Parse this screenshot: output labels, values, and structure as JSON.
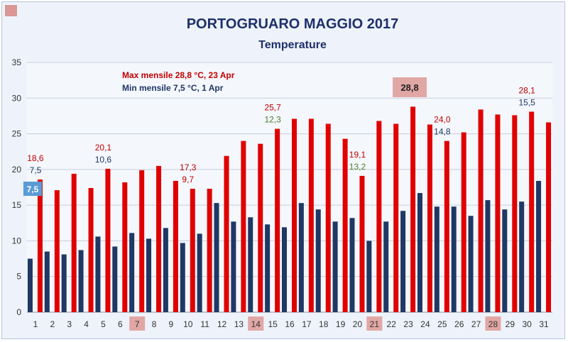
{
  "chart_data": {
    "type": "bar",
    "title": "PORTOGRUARO MAGGIO 2017",
    "subtitle": "Temperature",
    "categories": [
      "1",
      "2",
      "3",
      "4",
      "5",
      "6",
      "7",
      "8",
      "9",
      "10",
      "11",
      "12",
      "13",
      "14",
      "15",
      "16",
      "17",
      "18",
      "19",
      "20",
      "21",
      "22",
      "23",
      "24",
      "25",
      "26",
      "27",
      "28",
      "29",
      "30",
      "31"
    ],
    "ylim": [
      0,
      35
    ],
    "yticks": [
      "0",
      "5",
      "10",
      "15",
      "20",
      "25",
      "30",
      "35"
    ],
    "grid": true,
    "series": [
      {
        "color": "#e00000",
        "values": [
          18.6,
          17.1,
          19.4,
          17.4,
          20.1,
          18.2,
          19.9,
          20.5,
          18.4,
          17.3,
          17.3,
          21.9,
          24.0,
          23.6,
          25.7,
          27.1,
          27.1,
          26.4,
          24.3,
          19.1,
          26.8,
          26.4,
          28.8,
          26.3,
          24.0,
          25.2,
          28.4,
          27.7,
          27.6,
          28.1,
          26.6
        ]
      },
      {
        "color": "#1f3864",
        "values": [
          7.5,
          8.5,
          8.1,
          8.7,
          10.6,
          9.2,
          11.1,
          10.3,
          11.8,
          9.7,
          11.0,
          15.3,
          12.7,
          13.3,
          12.3,
          11.9,
          15.3,
          14.4,
          12.7,
          13.2,
          10.0,
          12.7,
          14.2,
          16.7,
          14.8,
          14.8,
          13.5,
          15.7,
          14.4,
          15.5,
          18.4
        ]
      }
    ],
    "annotations": {
      "max_note": "Max mensile 28,8 °C, 23  Apr",
      "min_note": "Min mensile 7,5 °C, 1 Apr",
      "max_box": "28,8",
      "min_box": "7,5",
      "max_color": "#c00000",
      "min_color": "#1f3864",
      "low_color": "#4e7a2a",
      "highlighted_days": [
        "7",
        "14",
        "21",
        "28"
      ],
      "labels": [
        {
          "day": "1",
          "max": "18,6",
          "min": "7,5",
          "min_color": "dark"
        },
        {
          "day": "5",
          "max": "20,1",
          "min": "10,6",
          "min_color": "dark"
        },
        {
          "day": "10",
          "max": "17,3",
          "min": "9,7",
          "min_color": "red"
        },
        {
          "day": "15",
          "max": "25,7",
          "min": "12,3",
          "min_color": "green"
        },
        {
          "day": "20",
          "max": "19,1",
          "min": "13,2",
          "min_color": "green"
        },
        {
          "day": "25",
          "max": "24,0",
          "min": "14,8",
          "min_color": "dark"
        },
        {
          "day": "30",
          "max": "28,1",
          "min": "15,5",
          "min_color": "dark"
        }
      ]
    }
  }
}
